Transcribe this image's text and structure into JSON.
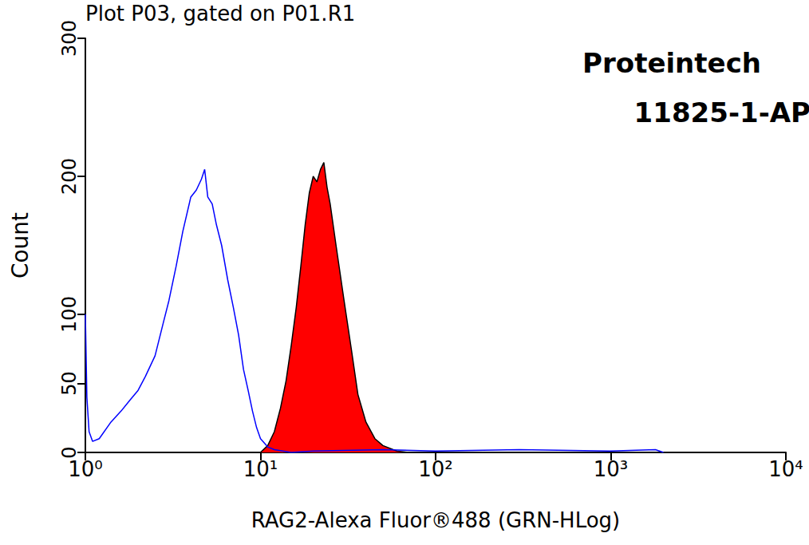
{
  "chart_data": {
    "type": "line",
    "title": "Plot P03, gated on P01.R1",
    "annotations": [
      "Proteintech",
      "11825-1-AP"
    ],
    "x_label": "RAG2-Alexa Fluor®488 (GRN-HLog)",
    "y_label": "Count",
    "log": "x",
    "grid": false,
    "xlim": [
      1,
      10000
    ],
    "xticks": [
      {
        "value": 1,
        "label": "10⁰"
      },
      {
        "value": 10,
        "label": "10¹"
      },
      {
        "value": 100,
        "label": "10²"
      },
      {
        "value": 1000,
        "label": "10³"
      },
      {
        "value": 10000,
        "label": "10⁴"
      }
    ],
    "ylim": [
      0,
      300
    ],
    "yticks": [
      0,
      50,
      100,
      200,
      300
    ],
    "series": [
      {
        "type": "line",
        "color": "#0000ff",
        "x": [
          1,
          1.02,
          1.05,
          1.1,
          1.2,
          1.4,
          1.6,
          1.8,
          2,
          2.2,
          2.5,
          2.8,
          3,
          3.3,
          3.6,
          4,
          4.3,
          4.6,
          4.8,
          5,
          5.3,
          5.6,
          6,
          6.5,
          7,
          7.5,
          8,
          8.5,
          9,
          9.5,
          10,
          11,
          12,
          15,
          20,
          50,
          100,
          300,
          1000,
          1800,
          2000
        ],
        "values": [
          100,
          40,
          15,
          8,
          10,
          22,
          30,
          38,
          45,
          55,
          70,
          95,
          110,
          135,
          160,
          185,
          190,
          198,
          205,
          185,
          180,
          165,
          150,
          125,
          105,
          85,
          60,
          45,
          30,
          18,
          10,
          4,
          2,
          0,
          1,
          2,
          1,
          2,
          1,
          2,
          0
        ]
      },
      {
        "type": "area",
        "color": "#ff0000",
        "x": [
          10,
          11,
          12,
          13,
          14,
          15,
          16,
          17,
          18,
          19,
          20,
          21,
          22,
          23,
          24,
          25,
          27,
          30,
          33,
          36,
          40,
          45,
          50,
          60,
          70
        ],
        "values": [
          0,
          5,
          15,
          32,
          52,
          78,
          105,
          135,
          165,
          188,
          200,
          196,
          205,
          210,
          192,
          180,
          150,
          110,
          75,
          42,
          22,
          10,
          5,
          1,
          0
        ]
      }
    ]
  }
}
